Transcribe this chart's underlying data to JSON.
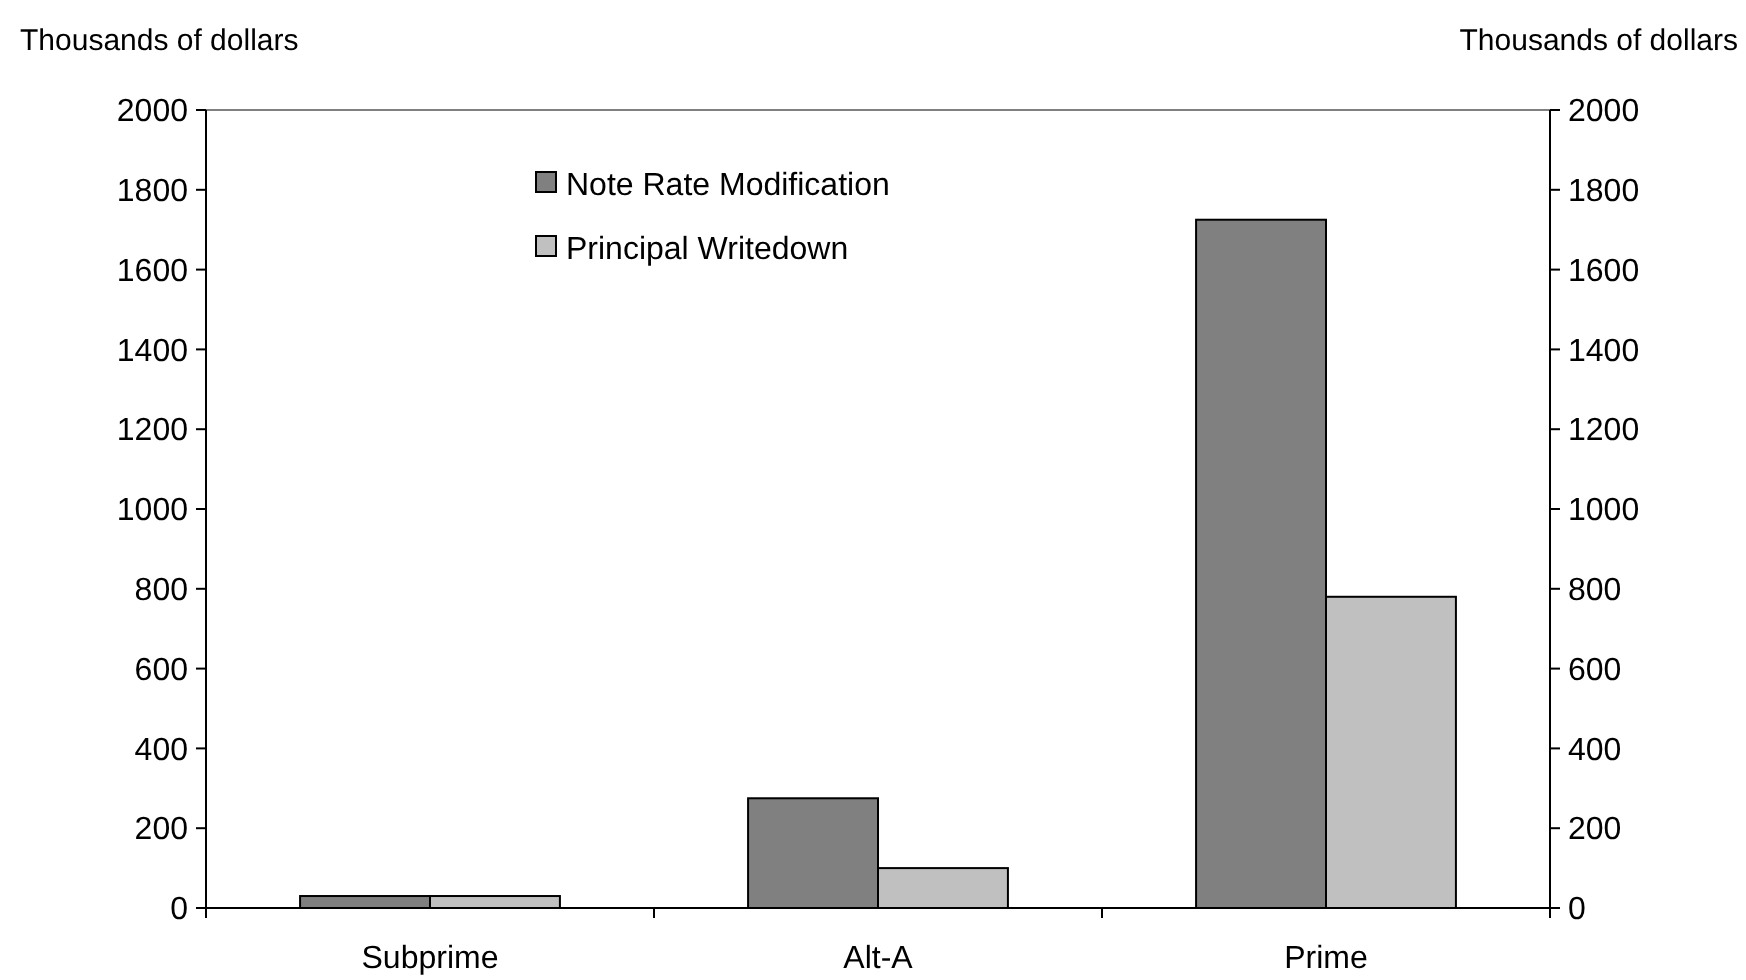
{
  "chart_data": {
    "type": "bar",
    "ylabel": "Thousands of dollars",
    "y2label": "Thousands of dollars",
    "categories": [
      "Subprime",
      "Alt-A",
      "Prime"
    ],
    "series": [
      {
        "name": "Note Rate Modification",
        "color": "#808080",
        "values": [
          30,
          275,
          1725
        ]
      },
      {
        "name": "Principal Writedown",
        "color": "#c0c0c0",
        "values": [
          30,
          100,
          780
        ]
      }
    ],
    "ylim": [
      0,
      2000
    ],
    "yticks": [
      0,
      200,
      400,
      600,
      800,
      1000,
      1200,
      1400,
      1600,
      1800,
      2000
    ],
    "y2lim": [
      0,
      2000
    ],
    "y2ticks": [
      0,
      200,
      400,
      600,
      800,
      1000,
      1200,
      1400,
      1600,
      1800,
      2000
    ],
    "grid": false,
    "legend": "top"
  }
}
